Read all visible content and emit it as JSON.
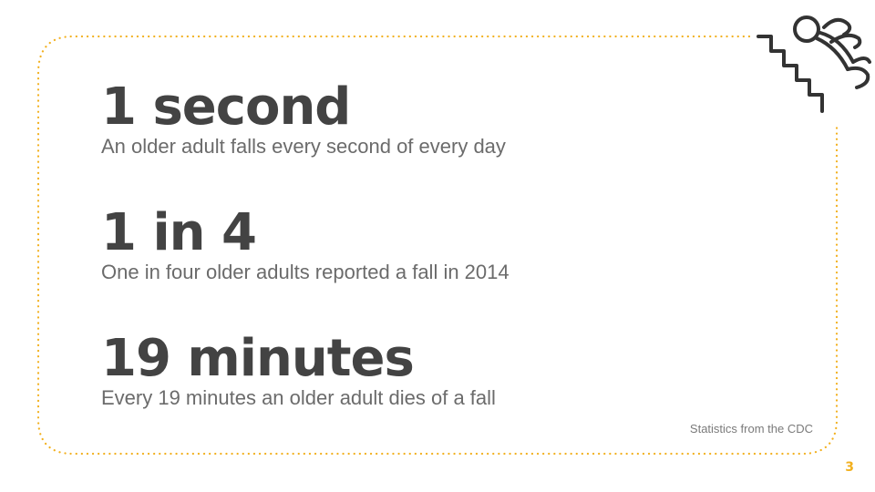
{
  "colors": {
    "accent": "#f2b01e",
    "heading": "#434343",
    "body": "#6b6b6b"
  },
  "icon": "falling-on-stairs-icon",
  "stats": [
    {
      "value": "1 second",
      "description": "An older adult falls every second of every day"
    },
    {
      "value": "1 in 4",
      "description": "One in four older adults reported a fall in 2014"
    },
    {
      "value": "19 minutes",
      "description": "Every 19 minutes an older adult dies of a fall"
    }
  ],
  "source": "Statistics from the CDC",
  "page_number": "3"
}
